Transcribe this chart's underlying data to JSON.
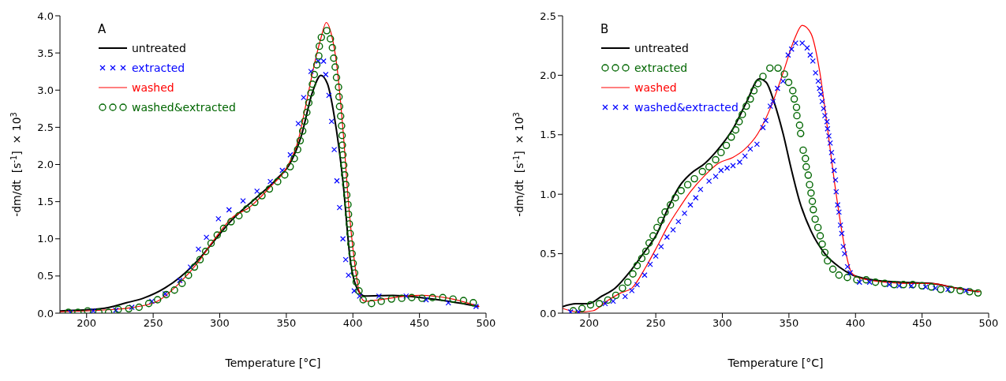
{
  "chart_data": [
    {
      "type": "line",
      "title": "A",
      "xlabel": "Temperature  [°C]",
      "ylabel": "-dm/dt  [s$^{-1}$]  × 10$^{3}$",
      "xlim": [
        180,
        500
      ],
      "xticks": [
        200,
        250,
        300,
        350,
        400,
        450,
        500
      ],
      "ylim": [
        0,
        4
      ],
      "yticks": [
        {
          "value": 0,
          "label": "0.0"
        },
        {
          "value": 0.5,
          "label": "0.5"
        },
        {
          "value": 1,
          "label": "1.0"
        },
        {
          "value": 1.5,
          "label": "1.5"
        },
        {
          "value": 2,
          "label": "2.0"
        },
        {
          "value": 2.5,
          "label": "2.5"
        },
        {
          "value": 3,
          "label": "3.0"
        },
        {
          "value": 3.5,
          "label": "3.5"
        },
        {
          "value": 4,
          "label": "4.0"
        }
      ],
      "grid": false,
      "legend": "top left",
      "series": [
        {
          "name": "untreated",
          "type": "line",
          "marker": "none",
          "color": "#000000",
          "x": [
            180,
            211,
            230,
            242.5,
            259,
            270,
            284,
            297,
            309,
            326,
            342.5,
            353,
            361,
            369.6,
            376,
            381,
            386,
            392.5,
            398,
            403,
            409,
            430,
            451,
            472,
            494.6
          ],
          "values": [
            0.03,
            0.06,
            0.14,
            0.2,
            0.34,
            0.48,
            0.72,
            1.0,
            1.25,
            1.53,
            1.8,
            2.02,
            2.37,
            2.97,
            3.2,
            3.08,
            2.65,
            1.78,
            0.72,
            0.34,
            0.23,
            0.24,
            0.21,
            0.16,
            0.09
          ]
        },
        {
          "name": "extracted",
          "type": "scatter",
          "marker": "cross",
          "color": "#0000ff",
          "x": [
            188,
            205,
            222,
            234,
            249,
            259,
            270,
            278,
            284,
            290,
            299,
            307,
            317.5,
            328,
            338,
            347,
            353,
            359,
            363,
            368.5,
            374,
            378,
            379.6,
            382,
            384,
            386,
            388,
            390,
            392.5,
            394.6,
            396.7,
            401,
            405,
            419.6,
            440,
            455,
            471.7,
            492.5
          ],
          "values": [
            0.01,
            0.03,
            0.04,
            0.08,
            0.16,
            0.26,
            0.44,
            0.62,
            0.86,
            1.02,
            1.27,
            1.39,
            1.51,
            1.64,
            1.77,
            1.92,
            2.13,
            2.55,
            2.9,
            3.25,
            3.39,
            3.39,
            3.21,
            2.93,
            2.58,
            2.2,
            1.78,
            1.42,
            1.0,
            0.72,
            0.51,
            0.3,
            0.23,
            0.23,
            0.23,
            0.18,
            0.14,
            0.09
          ]
        },
        {
          "name": "washed",
          "type": "line",
          "marker": "none",
          "color": "#ff0000",
          "x": [
            180,
            211,
            232,
            253,
            270,
            284,
            295,
            309,
            322,
            338,
            351,
            359,
            365,
            372,
            376,
            380,
            384,
            388,
            392.5,
            397,
            401,
            405,
            409,
            420,
            440,
            451,
            472,
            495
          ],
          "values": [
            0.02,
            0.04,
            0.07,
            0.16,
            0.41,
            0.69,
            0.97,
            1.28,
            1.42,
            1.7,
            1.98,
            2.33,
            2.83,
            3.42,
            3.7,
            3.91,
            3.74,
            3.32,
            2.48,
            1.42,
            0.72,
            0.27,
            0.16,
            0.18,
            0.23,
            0.24,
            0.2,
            0.09
          ]
        },
        {
          "name": "washed&extracted",
          "type": "scatter",
          "marker": "circle",
          "color": "#006600",
          "x": [
            186.3,
            193.5,
            200.8,
            209.2,
            216.5,
            223.8,
            231.7,
            239.4,
            246.7,
            253.3,
            259.8,
            266,
            271.7,
            276.5,
            281,
            285.2,
            289.4,
            293.5,
            298.1,
            302.9,
            308.5,
            314.4,
            320.2,
            326.3,
            331.7,
            337.3,
            343.5,
            348.8,
            352.9,
            356,
            358.5,
            360.4,
            362.3,
            363.8,
            365.4,
            366.9,
            368.5,
            369.6,
            371,
            372.9,
            374.4,
            374.8,
            376.3,
            380.4,
            383.1,
            384.6,
            385.6,
            386.7,
            387.7,
            389.2,
            389.6,
            390,
            390.8,
            391.5,
            391.9,
            392.1,
            392.5,
            393.1,
            393.8,
            394.6,
            395.4,
            396.3,
            396.7,
            397.3,
            397.9,
            398.5,
            399.4,
            400.2,
            401.3,
            402.5,
            404.6,
            407.7,
            414,
            421.3,
            429,
            436.7,
            444.2,
            451.9,
            459.8,
            467.5,
            475.2,
            483.1,
            490.4
          ],
          "values": [
            0.01,
            0.01,
            0.03,
            0.01,
            0.01,
            0.05,
            0.06,
            0.08,
            0.13,
            0.18,
            0.25,
            0.31,
            0.4,
            0.51,
            0.62,
            0.72,
            0.83,
            0.94,
            1.05,
            1.14,
            1.23,
            1.31,
            1.4,
            1.49,
            1.58,
            1.67,
            1.77,
            1.86,
            1.97,
            2.08,
            2.2,
            2.32,
            2.45,
            2.58,
            2.7,
            2.83,
            2.96,
            3.08,
            3.21,
            3.34,
            3.46,
            3.59,
            3.71,
            3.8,
            3.69,
            3.57,
            3.43,
            3.31,
            3.17,
            3.04,
            2.91,
            2.78,
            2.65,
            2.52,
            2.39,
            2.26,
            2.13,
            1.99,
            1.86,
            1.73,
            1.59,
            1.46,
            1.33,
            1.2,
            1.07,
            0.93,
            0.8,
            0.67,
            0.54,
            0.42,
            0.3,
            0.18,
            0.13,
            0.16,
            0.19,
            0.2,
            0.21,
            0.2,
            0.21,
            0.21,
            0.19,
            0.17,
            0.14
          ]
        }
      ]
    },
    {
      "type": "line",
      "title": "B",
      "xlabel": "Temperature  [°C]",
      "ylabel": "-dm/dt  [s$^{-1}$]  × 10$^{3}$",
      "xlim": [
        180,
        500
      ],
      "xticks": [
        200,
        250,
        300,
        350,
        400,
        450,
        500
      ],
      "ylim": [
        0,
        2.5
      ],
      "yticks": [
        {
          "value": 0,
          "label": "0.0"
        },
        {
          "value": 0.5,
          "label": "0.5"
        },
        {
          "value": 1,
          "label": "1.0"
        },
        {
          "value": 1.5,
          "label": "1.5"
        },
        {
          "value": 2,
          "label": "2.0"
        },
        {
          "value": 2.5,
          "label": "2.5"
        }
      ],
      "grid": false,
      "legend": "top left",
      "series": [
        {
          "name": "untreated",
          "type": "line",
          "marker": "none",
          "color": "#000000",
          "x": [
            180,
            190,
            199.6,
            209,
            219.5,
            230,
            240.5,
            251,
            259.5,
            268,
            276,
            287,
            297,
            308,
            318,
            327.7,
            333,
            339,
            345.6,
            352,
            358,
            366.6,
            377,
            387.6,
            398,
            412.8,
            433.8,
            457,
            476,
            492.6
          ],
          "values": [
            0.055,
            0.08,
            0.08,
            0.14,
            0.21,
            0.34,
            0.5,
            0.67,
            0.89,
            1.07,
            1.17,
            1.26,
            1.38,
            1.55,
            1.77,
            1.97,
            1.94,
            1.77,
            1.51,
            1.2,
            0.94,
            0.69,
            0.5,
            0.39,
            0.32,
            0.28,
            0.26,
            0.25,
            0.21,
            0.18
          ]
        },
        {
          "name": "extracted",
          "type": "scatter",
          "marker": "circle",
          "color": "#006600",
          "x": [
            188,
            194.6,
            201,
            207.6,
            214,
            220,
            225,
            229,
            232.8,
            236,
            239.5,
            242.6,
            245,
            248,
            251,
            254,
            257,
            261,
            264.7,
            269,
            274,
            279,
            285,
            290,
            295,
            299,
            303,
            306.7,
            310,
            312.6,
            315,
            318,
            321,
            323.7,
            326.7,
            330.5,
            335.7,
            341.8,
            346.6,
            349.8,
            352.9,
            354,
            355.7,
            356,
            358,
            358.8,
            360.7,
            362.4,
            363,
            364.5,
            365.5,
            366.6,
            367.6,
            368.3,
            369.7,
            371.8,
            373.5,
            375,
            377,
            379,
            383,
            387.6,
            393.9,
            401,
            408,
            415,
            422,
            429,
            436,
            443,
            450,
            457,
            464,
            471.6,
            478.6,
            485.7,
            492
          ],
          "values": [
            0.02,
            0.04,
            0.07,
            0.08,
            0.11,
            0.15,
            0.21,
            0.26,
            0.33,
            0.4,
            0.46,
            0.52,
            0.59,
            0.65,
            0.72,
            0.78,
            0.85,
            0.91,
            0.97,
            1.03,
            1.08,
            1.13,
            1.19,
            1.23,
            1.29,
            1.35,
            1.41,
            1.48,
            1.54,
            1.61,
            1.67,
            1.74,
            1.8,
            1.87,
            1.93,
            1.99,
            2.06,
            2.06,
            2.01,
            1.94,
            1.87,
            1.8,
            1.73,
            1.66,
            1.58,
            1.51,
            1.37,
            1.3,
            1.23,
            1.16,
            1.08,
            1.01,
            0.94,
            0.87,
            0.79,
            0.72,
            0.65,
            0.58,
            0.51,
            0.44,
            0.37,
            0.32,
            0.3,
            0.28,
            0.28,
            0.26,
            0.25,
            0.24,
            0.24,
            0.24,
            0.23,
            0.22,
            0.2,
            0.2,
            0.19,
            0.18,
            0.17
          ]
        },
        {
          "name": "washed",
          "type": "line",
          "marker": "none",
          "color": "#ff0000",
          "x": [
            180,
            192,
            202.7,
            213,
            223.7,
            232,
            242.6,
            251,
            259.5,
            268,
            276,
            287,
            297,
            308,
            316,
            326.7,
            337,
            345.6,
            354,
            360,
            366.6,
            373,
            379,
            385.5,
            391.8,
            397,
            402,
            423,
            444,
            457,
            476,
            494
          ],
          "values": [
            0.04,
            0.01,
            0.02,
            0.1,
            0.17,
            0.21,
            0.39,
            0.56,
            0.74,
            0.89,
            1.02,
            1.16,
            1.26,
            1.31,
            1.37,
            1.51,
            1.75,
            2.02,
            2.3,
            2.42,
            2.35,
            2.04,
            1.55,
            1.0,
            0.56,
            0.34,
            0.3,
            0.26,
            0.25,
            0.25,
            0.21,
            0.18
          ]
        },
        {
          "name": "washed&extracted",
          "type": "scatter",
          "marker": "cross",
          "color": "#0000ff",
          "x": [
            186,
            192,
            212,
            218,
            227,
            232,
            236,
            241.6,
            245.8,
            250,
            254,
            258.4,
            263,
            267,
            271.6,
            276,
            280,
            283.6,
            290,
            295,
            299,
            303.6,
            308,
            313,
            317,
            321,
            326,
            330.5,
            332.6,
            336,
            338,
            341.4,
            345.6,
            349.4,
            352,
            355,
            360,
            363.7,
            366,
            368,
            370,
            372,
            373,
            374,
            375,
            376,
            377,
            378.6,
            379,
            380,
            381,
            382,
            383,
            384,
            385,
            385.5,
            386.6,
            387.6,
            388.7,
            389.7,
            390.8,
            391.8,
            394,
            396,
            403,
            410.6,
            425.4,
            432.8,
            442,
            452.7,
            460,
            469.5,
            483
          ],
          "values": [
            0.01,
            0.01,
            0.08,
            0.1,
            0.14,
            0.19,
            0.24,
            0.32,
            0.41,
            0.48,
            0.56,
            0.64,
            0.7,
            0.77,
            0.84,
            0.91,
            0.97,
            1.04,
            1.11,
            1.15,
            1.2,
            1.22,
            1.24,
            1.27,
            1.32,
            1.38,
            1.42,
            1.56,
            1.62,
            1.74,
            1.78,
            1.89,
            1.95,
            2.17,
            2.22,
            2.27,
            2.27,
            2.23,
            2.17,
            2.12,
            2.02,
            1.95,
            1.89,
            1.84,
            1.78,
            1.72,
            1.66,
            1.61,
            1.55,
            1.49,
            1.43,
            1.35,
            1.28,
            1.2,
            1.12,
            1.02,
            0.91,
            0.85,
            0.74,
            0.67,
            0.56,
            0.5,
            0.39,
            0.34,
            0.26,
            0.26,
            0.24,
            0.23,
            0.23,
            0.22,
            0.21,
            0.2,
            0.19
          ]
        }
      ]
    }
  ]
}
